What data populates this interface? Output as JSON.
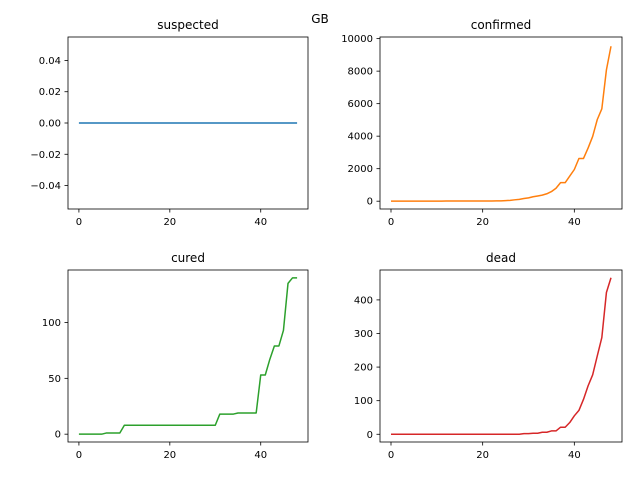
{
  "suptitle": "GB",
  "chart_data": [
    {
      "type": "line",
      "title": "suspected",
      "color": "#1f77b4",
      "xlim": [
        -2.4,
        50.4
      ],
      "ylim": [
        -0.055,
        0.055
      ],
      "xticks": [
        0,
        20,
        40
      ],
      "xtick_labels": [
        "0",
        "20",
        "40"
      ],
      "yticks": [
        -0.04,
        -0.02,
        0.0,
        0.02,
        0.04
      ],
      "ytick_labels": [
        "−0.04",
        "−0.02",
        "0.00",
        "0.02",
        "0.04"
      ],
      "x": [
        0,
        1,
        2,
        3,
        4,
        5,
        6,
        7,
        8,
        9,
        10,
        11,
        12,
        13,
        14,
        15,
        16,
        17,
        18,
        19,
        20,
        21,
        22,
        23,
        24,
        25,
        26,
        27,
        28,
        29,
        30,
        31,
        32,
        33,
        34,
        35,
        36,
        37,
        38,
        39,
        40,
        41,
        42,
        43,
        44,
        45,
        46,
        47,
        48
      ],
      "y": [
        0,
        0,
        0,
        0,
        0,
        0,
        0,
        0,
        0,
        0,
        0,
        0,
        0,
        0,
        0,
        0,
        0,
        0,
        0,
        0,
        0,
        0,
        0,
        0,
        0,
        0,
        0,
        0,
        0,
        0,
        0,
        0,
        0,
        0,
        0,
        0,
        0,
        0,
        0,
        0,
        0,
        0,
        0,
        0,
        0,
        0,
        0,
        0,
        0
      ]
    },
    {
      "type": "line",
      "title": "confirmed",
      "color": "#ff7f0e",
      "xlim": [
        -2.4,
        50.4
      ],
      "ylim": [
        -480,
        10100
      ],
      "xticks": [
        0,
        20,
        40
      ],
      "xtick_labels": [
        "0",
        "20",
        "40"
      ],
      "yticks": [
        0,
        2000,
        4000,
        6000,
        8000,
        10000
      ],
      "ytick_labels": [
        "0",
        "2000",
        "4000",
        "6000",
        "8000",
        "10000"
      ],
      "x": [
        0,
        1,
        2,
        3,
        4,
        5,
        6,
        7,
        8,
        9,
        10,
        11,
        12,
        13,
        14,
        15,
        16,
        17,
        18,
        19,
        20,
        21,
        22,
        23,
        24,
        25,
        26,
        27,
        28,
        29,
        30,
        31,
        32,
        33,
        34,
        35,
        36,
        37,
        38,
        39,
        40,
        41,
        42,
        43,
        44,
        45,
        46,
        47,
        48
      ],
      "y": [
        2,
        2,
        2,
        2,
        2,
        2,
        2,
        2,
        3,
        8,
        8,
        8,
        9,
        9,
        9,
        9,
        9,
        9,
        9,
        9,
        9,
        13,
        13,
        19,
        23,
        36,
        51,
        85,
        115,
        163,
        206,
        273,
        321,
        373,
        456,
        590,
        798,
        1140,
        1140,
        1543,
        1950,
        2626,
        2630,
        3269,
        3983,
        5018,
        5683,
        8077,
        9529
      ]
    },
    {
      "type": "line",
      "title": "cured",
      "color": "#2ca02c",
      "xlim": [
        -2.4,
        50.4
      ],
      "ylim": [
        -7,
        147
      ],
      "xticks": [
        0,
        20,
        40
      ],
      "xtick_labels": [
        "0",
        "20",
        "40"
      ],
      "yticks": [
        0,
        50,
        100
      ],
      "ytick_labels": [
        "0",
        "50",
        "100"
      ],
      "x": [
        0,
        1,
        2,
        3,
        4,
        5,
        6,
        7,
        8,
        9,
        10,
        11,
        12,
        13,
        14,
        15,
        16,
        17,
        18,
        19,
        20,
        21,
        22,
        23,
        24,
        25,
        26,
        27,
        28,
        29,
        30,
        31,
        32,
        33,
        34,
        35,
        36,
        37,
        38,
        39,
        40,
        41,
        42,
        43,
        44,
        45,
        46,
        47,
        48
      ],
      "y": [
        0,
        0,
        0,
        0,
        0,
        0,
        1,
        1,
        1,
        1,
        8,
        8,
        8,
        8,
        8,
        8,
        8,
        8,
        8,
        8,
        8,
        8,
        8,
        8,
        8,
        8,
        8,
        8,
        8,
        8,
        8,
        18,
        18,
        18,
        18,
        19,
        19,
        19,
        19,
        19,
        53,
        53,
        67,
        79,
        79,
        93,
        135,
        140,
        140
      ]
    },
    {
      "type": "line",
      "title": "dead",
      "color": "#d62728",
      "xlim": [
        -2.4,
        50.4
      ],
      "ylim": [
        -23,
        489
      ],
      "xticks": [
        0,
        20,
        40
      ],
      "xtick_labels": [
        "0",
        "20",
        "40"
      ],
      "yticks": [
        0,
        100,
        200,
        300,
        400
      ],
      "ytick_labels": [
        "0",
        "100",
        "200",
        "300",
        "400"
      ],
      "x": [
        0,
        1,
        2,
        3,
        4,
        5,
        6,
        7,
        8,
        9,
        10,
        11,
        12,
        13,
        14,
        15,
        16,
        17,
        18,
        19,
        20,
        21,
        22,
        23,
        24,
        25,
        26,
        27,
        28,
        29,
        30,
        31,
        32,
        33,
        34,
        35,
        36,
        37,
        38,
        39,
        40,
        41,
        42,
        43,
        44,
        45,
        46,
        47,
        48
      ],
      "y": [
        0,
        0,
        0,
        0,
        0,
        0,
        0,
        0,
        0,
        0,
        0,
        0,
        0,
        0,
        0,
        0,
        0,
        0,
        0,
        0,
        0,
        0,
        0,
        0,
        0,
        0,
        0,
        0,
        0,
        2,
        2,
        3,
        3,
        6,
        6,
        10,
        10,
        21,
        21,
        35,
        55,
        71,
        104,
        144,
        177,
        233,
        288,
        422,
        466
      ]
    }
  ]
}
